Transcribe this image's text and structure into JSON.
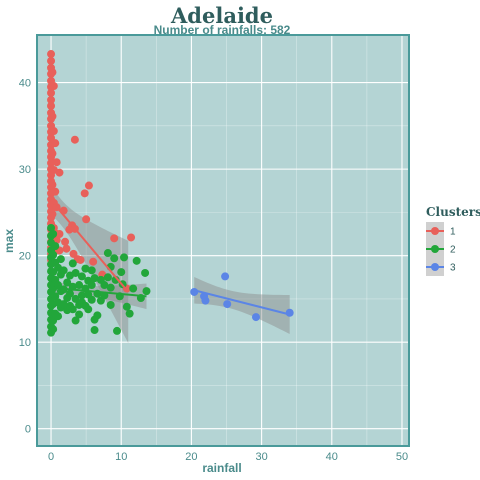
{
  "chart_data": {
    "type": "scatter",
    "title": "Adelaide",
    "subtitle": "Number of rainfalls: 582",
    "xlabel": "rainfall",
    "ylabel": "max",
    "xlim": [
      -2,
      51
    ],
    "ylim": [
      -2,
      45.5
    ],
    "x_ticks": [
      0,
      10,
      20,
      30,
      40,
      50
    ],
    "y_ticks": [
      0,
      10,
      20,
      30,
      40
    ],
    "grid": true,
    "legend": {
      "title": "Clusters",
      "position": "right"
    },
    "colors": {
      "panel_bg": "#b4d4d4",
      "frame": "#4a9a9a",
      "grid": "#ffffff",
      "ribbon": "#8a8a8a"
    },
    "series": [
      {
        "name": "1",
        "color": "#e8605a",
        "points": [
          [
            0,
            43.3
          ],
          [
            0,
            42.5
          ],
          [
            0,
            41.7
          ],
          [
            0,
            41
          ],
          [
            0,
            40.2
          ],
          [
            0,
            39.5
          ],
          [
            0,
            38.8
          ],
          [
            0,
            38
          ],
          [
            0,
            37.3
          ],
          [
            0,
            36.5
          ],
          [
            0,
            35.8
          ],
          [
            0,
            35
          ],
          [
            0,
            34.3
          ],
          [
            0,
            33.6
          ],
          [
            0,
            32.8
          ],
          [
            0,
            32.1
          ],
          [
            0,
            31.4
          ],
          [
            0,
            30.7
          ],
          [
            0,
            30
          ],
          [
            0,
            29.3
          ],
          [
            0,
            28.6
          ],
          [
            0,
            27.9
          ],
          [
            0,
            27.2
          ],
          [
            0,
            26.5
          ],
          [
            0,
            25.8
          ],
          [
            0,
            25.1
          ],
          [
            0,
            24.4
          ],
          [
            0,
            23.7
          ],
          [
            0,
            23
          ],
          [
            0,
            22.3
          ],
          [
            0,
            21.6
          ],
          [
            0,
            20.9
          ],
          [
            0,
            20.2
          ],
          [
            0,
            19.5
          ],
          [
            0.2,
            41.2
          ],
          [
            0.2,
            36.1
          ],
          [
            0.2,
            31.8
          ],
          [
            0.2,
            28.2
          ],
          [
            0.2,
            24.8
          ],
          [
            0.2,
            21.3
          ],
          [
            0.4,
            39.6
          ],
          [
            0.4,
            34.4
          ],
          [
            0.4,
            29.9
          ],
          [
            0.4,
            26.1
          ],
          [
            0.4,
            23.2
          ],
          [
            0.4,
            20.4
          ],
          [
            0.6,
            33
          ],
          [
            0.6,
            27.4
          ],
          [
            0.6,
            22.6
          ],
          [
            0.8,
            30.8
          ],
          [
            0.8,
            25.6
          ],
          [
            0.8,
            21.8
          ],
          [
            1.2,
            29.6
          ],
          [
            1.2,
            22.5
          ],
          [
            1.2,
            20.6
          ],
          [
            1.8,
            25.2
          ],
          [
            2,
            21.6
          ],
          [
            2.2,
            20.8
          ],
          [
            2.6,
            23
          ],
          [
            3,
            23.5
          ],
          [
            3.4,
            33.4
          ],
          [
            3.4,
            23.1
          ],
          [
            3.2,
            20.2
          ],
          [
            3.8,
            19.6
          ],
          [
            4.2,
            19.5
          ],
          [
            4.8,
            27.2
          ],
          [
            5.4,
            28.1
          ],
          [
            5,
            24.2
          ],
          [
            6,
            19.3
          ],
          [
            7.3,
            17.8
          ],
          [
            9,
            22
          ],
          [
            10.8,
            16.2
          ],
          [
            11.4,
            22.1
          ]
        ],
        "trend": {
          "x0": 0,
          "y0": 26.4,
          "x1": 11,
          "y1": 15.8
        }
      },
      {
        "name": "2",
        "color": "#22a63a",
        "points": [
          [
            0,
            23.2
          ],
          [
            0,
            22.3
          ],
          [
            0,
            21.5
          ],
          [
            0,
            20.6
          ],
          [
            0,
            19.8
          ],
          [
            0,
            19
          ],
          [
            0,
            18.2
          ],
          [
            0,
            17.4
          ],
          [
            0,
            16.6
          ],
          [
            0,
            15.8
          ],
          [
            0,
            15
          ],
          [
            0,
            14.2
          ],
          [
            0,
            13.4
          ],
          [
            0,
            12.6
          ],
          [
            0,
            11.8
          ],
          [
            0,
            11.1
          ],
          [
            0.3,
            22.5
          ],
          [
            0.3,
            20.1
          ],
          [
            0.3,
            18.1
          ],
          [
            0.3,
            16.2
          ],
          [
            0.3,
            14.4
          ],
          [
            0.3,
            12.5
          ],
          [
            0.3,
            11.5
          ],
          [
            0.6,
            21.1
          ],
          [
            0.6,
            19.2
          ],
          [
            0.6,
            17.2
          ],
          [
            0.6,
            15.3
          ],
          [
            0.6,
            13.3
          ],
          [
            1,
            18.6
          ],
          [
            1,
            16.6
          ],
          [
            1,
            14.6
          ],
          [
            1,
            13
          ],
          [
            1.4,
            19.6
          ],
          [
            1.4,
            17.8
          ],
          [
            1.4,
            15.9
          ],
          [
            1.4,
            14
          ],
          [
            1.8,
            18.3
          ],
          [
            1.8,
            16.1
          ],
          [
            1.8,
            14.4
          ],
          [
            2.3,
            16.9
          ],
          [
            2.3,
            15.1
          ],
          [
            2.3,
            13.7
          ],
          [
            2.7,
            17.7
          ],
          [
            2.7,
            15.6
          ],
          [
            2.7,
            14.2
          ],
          [
            3.1,
            19.1
          ],
          [
            3.1,
            16.4
          ],
          [
            3.1,
            13.8
          ],
          [
            3.5,
            18
          ],
          [
            3.5,
            15
          ],
          [
            3.5,
            12.5
          ],
          [
            4,
            16.6
          ],
          [
            4,
            14.3
          ],
          [
            4,
            13.2
          ],
          [
            4.4,
            17.6
          ],
          [
            4.4,
            15.4
          ],
          [
            4.4,
            14.6
          ],
          [
            4.9,
            18.5
          ],
          [
            4.9,
            16.2
          ],
          [
            4.9,
            14.2
          ],
          [
            5.3,
            17.1
          ],
          [
            5.3,
            15.5
          ],
          [
            5.3,
            13.8
          ],
          [
            5.8,
            18.3
          ],
          [
            5.8,
            16.6
          ],
          [
            5.8,
            14.9
          ],
          [
            6.2,
            17.4
          ],
          [
            6.2,
            12.6
          ],
          [
            6.2,
            11.4
          ],
          [
            6.6,
            15.6
          ],
          [
            6.6,
            13.1
          ],
          [
            7.1,
            17.2
          ],
          [
            7.1,
            14.8
          ],
          [
            7.6,
            16.6
          ],
          [
            7.6,
            15.4
          ],
          [
            8.1,
            20.3
          ],
          [
            8.1,
            17.5
          ],
          [
            8.5,
            18.7
          ],
          [
            8.5,
            16.3
          ],
          [
            8.5,
            14.3
          ],
          [
            9,
            19.7
          ],
          [
            9.2,
            17.2
          ],
          [
            9.4,
            11.3
          ],
          [
            9.8,
            15.3
          ],
          [
            10,
            18.1
          ],
          [
            10.2,
            16.7
          ],
          [
            10.4,
            19.8
          ],
          [
            10.8,
            14.1
          ],
          [
            11.2,
            13.3
          ],
          [
            11.7,
            16.2
          ],
          [
            12.2,
            19.4
          ],
          [
            12.8,
            15.1
          ],
          [
            13.4,
            18
          ],
          [
            13.6,
            15.9
          ]
        ],
        "trend": {
          "x0": 0,
          "y0": 16.3,
          "x1": 13.6,
          "y1": 15.3
        }
      },
      {
        "name": "3",
        "color": "#5b85e6",
        "points": [
          [
            20.4,
            15.8
          ],
          [
            21.8,
            15.3
          ],
          [
            22,
            14.8
          ],
          [
            24.8,
            17.6
          ],
          [
            25.1,
            14.4
          ],
          [
            29.2,
            12.9
          ],
          [
            34,
            13.4
          ]
        ],
        "trend": {
          "x0": 20.4,
          "y0": 16.0,
          "x1": 34,
          "y1": 13.2
        }
      }
    ]
  }
}
